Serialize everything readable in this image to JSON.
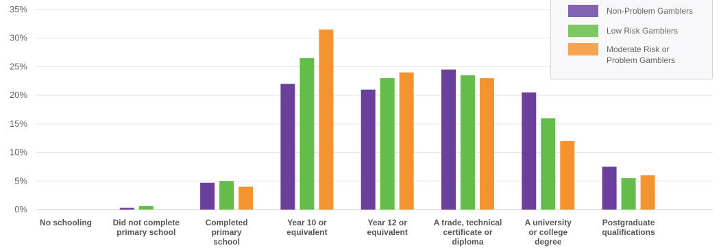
{
  "chart_data": {
    "type": "bar",
    "categories": [
      "No schooling",
      "Did not complete primary school",
      "Completed primary school",
      "Year 10 or equivalent",
      "Year 12 or equivalent",
      "A trade, technical certificate or diploma",
      "A university or college degree",
      "Postgraduate qualifications"
    ],
    "category_lines": [
      [
        "No schooling"
      ],
      [
        "Did not complete",
        "primary school"
      ],
      [
        "Completed",
        "primary",
        "school"
      ],
      [
        "Year 10 or",
        "equivalent"
      ],
      [
        "Year 12 or",
        "equivalent"
      ],
      [
        "A trade, technical",
        "certificate or",
        "diploma"
      ],
      [
        "A university",
        "or college",
        "degree"
      ],
      [
        "Postgraduate",
        "qualifications"
      ]
    ],
    "series": [
      {
        "name": "Non-Problem Gamblers",
        "color": "#6b3f9c",
        "legend_color": "#8262b2",
        "values": [
          0,
          0.3,
          4.7,
          22.0,
          21.0,
          24.5,
          20.5,
          7.5
        ]
      },
      {
        "name": "Low Risk Gamblers",
        "color": "#63bd48",
        "legend_color": "#7cc862",
        "values": [
          0,
          0.6,
          5.0,
          26.5,
          23.0,
          23.5,
          16.0,
          5.5
        ]
      },
      {
        "name": "Moderate Risk or Problem Gamblers",
        "legend_lines": [
          "Moderate Risk or",
          "Problem Gamblers"
        ],
        "color": "#f39431",
        "legend_color": "#f6a44f",
        "values": [
          0,
          0,
          4.0,
          31.5,
          24.0,
          23.0,
          12.0,
          6.0
        ]
      }
    ],
    "ylim": [
      0,
      35
    ],
    "yticks": [
      "0%",
      "5%",
      "10%",
      "15%",
      "20%",
      "25%",
      "30%",
      "35%"
    ],
    "grid": true,
    "legend_position": "top-right",
    "title": "",
    "xlabel": "",
    "ylabel": ""
  }
}
